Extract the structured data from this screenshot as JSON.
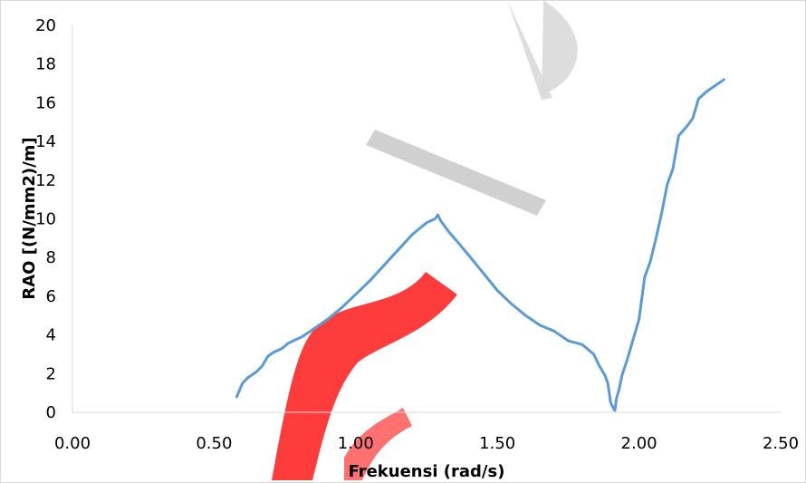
{
  "chart_data": {
    "type": "line",
    "title": "",
    "xlabel": "Frekuensi (rad/s)",
    "ylabel": "RAO [(N/mm2)/m]",
    "xlim": [
      0.0,
      2.5
    ],
    "ylim": [
      0,
      20
    ],
    "x_ticks": [
      "0.00",
      "0.50",
      "1.00",
      "1.50",
      "2.00",
      "2.50"
    ],
    "y_ticks": [
      "0",
      "2",
      "4",
      "6",
      "8",
      "10",
      "12",
      "14",
      "16",
      "18",
      "20"
    ],
    "grid": false,
    "legend": "none",
    "line_color": "#5b9bd5",
    "series": [
      {
        "x": [
          0.58,
          0.6,
          0.62,
          0.65,
          0.67,
          0.69,
          0.71,
          0.74,
          0.76,
          0.78,
          0.81,
          0.85,
          0.9,
          0.95,
          1.0,
          1.05,
          1.1,
          1.15,
          1.2,
          1.25,
          1.28,
          1.29,
          1.3,
          1.33,
          1.36,
          1.4,
          1.45,
          1.5,
          1.55,
          1.6,
          1.65,
          1.7,
          1.73,
          1.75,
          1.8,
          1.84,
          1.86,
          1.88,
          1.89,
          1.9,
          1.91,
          1.915,
          1.92,
          1.93,
          1.94,
          1.96,
          1.98,
          2.0,
          2.02,
          2.04,
          2.06,
          2.08,
          2.1,
          2.12,
          2.14,
          2.17,
          2.19,
          2.21,
          2.24,
          2.27,
          2.3
        ],
        "y": [
          0.8,
          1.5,
          1.8,
          2.1,
          2.4,
          2.9,
          3.1,
          3.3,
          3.55,
          3.7,
          3.9,
          4.3,
          4.8,
          5.4,
          6.1,
          6.8,
          7.6,
          8.4,
          9.2,
          9.8,
          10.0,
          10.2,
          9.9,
          9.3,
          8.8,
          8.1,
          7.2,
          6.3,
          5.6,
          5.0,
          4.5,
          4.2,
          3.9,
          3.7,
          3.5,
          3.0,
          2.4,
          1.9,
          1.5,
          0.5,
          0.2,
          0.1,
          0.7,
          1.2,
          1.9,
          2.8,
          3.8,
          4.8,
          7.0,
          7.8,
          9.0,
          10.3,
          11.8,
          12.6,
          14.3,
          14.8,
          15.2,
          16.2,
          16.6,
          16.9,
          17.2
        ]
      }
    ]
  }
}
